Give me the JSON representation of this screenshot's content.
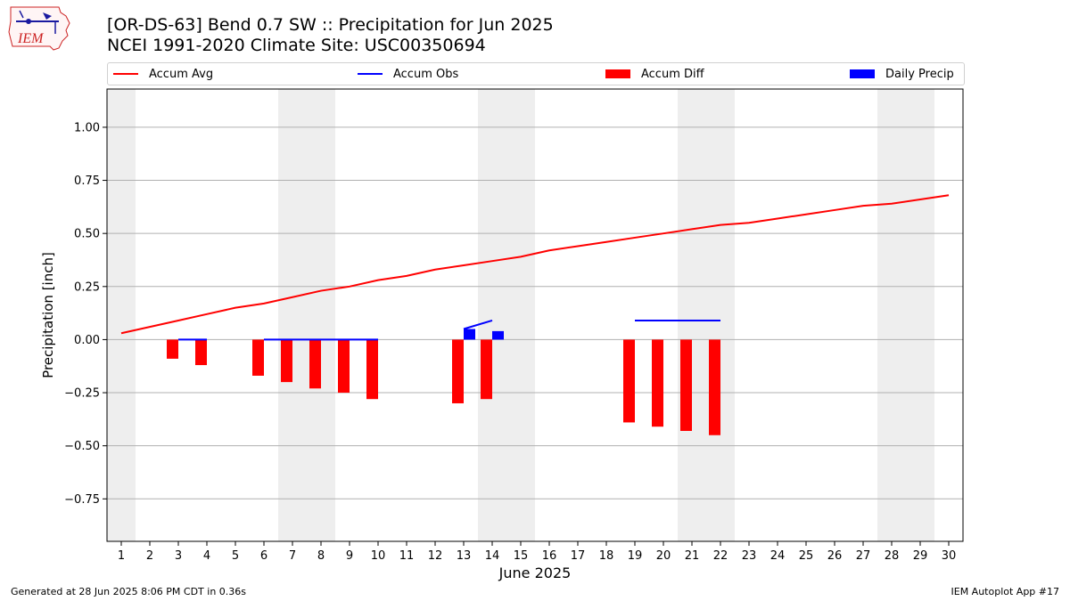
{
  "header": {
    "title_line1": "[OR-DS-63] Bend 0.7 SW :: Precipitation for Jun 2025",
    "title_line2": "NCEI 1991-2020 Climate Site: USC00350694",
    "logo_text": "IEM"
  },
  "footer": {
    "left": "Generated at 28 Jun 2025 8:06 PM CDT in 0.36s",
    "right": "IEM Autoplot App #17"
  },
  "legend": [
    {
      "label": "Accum Avg",
      "kind": "line",
      "color": "#ff0000"
    },
    {
      "label": "Accum Obs",
      "kind": "line",
      "color": "#0000ff"
    },
    {
      "label": "Accum Diff",
      "kind": "patch",
      "color": "#ff0000"
    },
    {
      "label": "Daily Precip",
      "kind": "patch",
      "color": "#0000ff"
    }
  ],
  "chart_data": {
    "type": "bar",
    "xlabel": "June 2025",
    "ylabel": "Precipitation [inch]",
    "xlim": [
      0.5,
      30.5
    ],
    "ylim": [
      -0.95,
      1.18
    ],
    "xticks": [
      1,
      2,
      3,
      4,
      5,
      6,
      7,
      8,
      9,
      10,
      11,
      12,
      13,
      14,
      15,
      16,
      17,
      18,
      19,
      20,
      21,
      22,
      23,
      24,
      25,
      26,
      27,
      28,
      29,
      30
    ],
    "yticks": [
      -0.75,
      -0.5,
      -0.25,
      0.0,
      0.25,
      0.5,
      0.75,
      1.0
    ],
    "ytick_labels": [
      "−0.75",
      "−0.50",
      "−0.25",
      "0.00",
      "0.25",
      "0.50",
      "0.75",
      "1.00"
    ],
    "grid": "horizontal",
    "weekend_shading": [
      [
        0.5,
        1.5
      ],
      [
        6.5,
        8.5
      ],
      [
        13.5,
        15.5
      ],
      [
        20.5,
        22.5
      ],
      [
        27.5,
        29.5
      ]
    ],
    "series": [
      {
        "name": "Accum Avg",
        "kind": "line",
        "color": "#ff0000",
        "x": [
          1,
          2,
          3,
          4,
          5,
          6,
          7,
          8,
          9,
          10,
          11,
          12,
          13,
          14,
          15,
          16,
          17,
          18,
          19,
          20,
          21,
          22,
          23,
          24,
          25,
          26,
          27,
          28,
          29,
          30
        ],
        "values": [
          0.03,
          0.06,
          0.09,
          0.12,
          0.15,
          0.17,
          0.2,
          0.23,
          0.25,
          0.28,
          0.3,
          0.33,
          0.35,
          0.37,
          0.39,
          0.42,
          0.44,
          0.46,
          0.48,
          0.5,
          0.52,
          0.54,
          0.55,
          0.57,
          0.59,
          0.61,
          0.63,
          0.64,
          0.66,
          0.68
        ]
      },
      {
        "name": "Accum Obs",
        "kind": "line",
        "color": "#0000ff",
        "segments": [
          {
            "x": [
              3,
              4
            ],
            "values": [
              0.0,
              0.0
            ]
          },
          {
            "x": [
              6,
              7,
              8,
              9,
              10
            ],
            "values": [
              0.0,
              0.0,
              0.0,
              0.0,
              0.0
            ]
          },
          {
            "x": [
              13,
              14
            ],
            "values": [
              0.05,
              0.09
            ]
          },
          {
            "x": [
              19,
              20,
              21,
              22
            ],
            "values": [
              0.09,
              0.09,
              0.09,
              0.09
            ]
          }
        ]
      },
      {
        "name": "Accum Diff",
        "kind": "bar",
        "color": "#ff0000",
        "x": [
          3,
          4,
          6,
          7,
          8,
          9,
          10,
          13,
          14,
          19,
          20,
          21,
          22
        ],
        "values": [
          -0.09,
          -0.12,
          -0.17,
          -0.2,
          -0.23,
          -0.25,
          -0.28,
          -0.3,
          -0.28,
          -0.39,
          -0.41,
          -0.43,
          -0.45
        ]
      },
      {
        "name": "Daily Precip",
        "kind": "bar",
        "color": "#0000ff",
        "x": [
          13,
          14
        ],
        "values": [
          0.05,
          0.04
        ]
      }
    ]
  }
}
